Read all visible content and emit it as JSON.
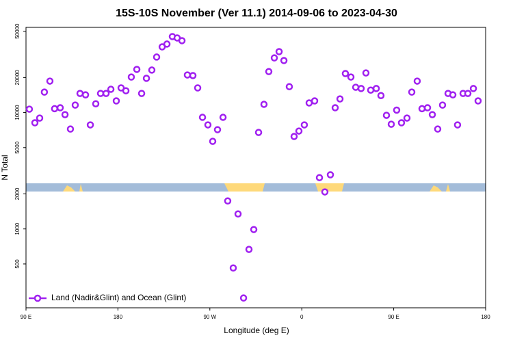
{
  "chart_data": {
    "type": "scatter",
    "title": "15S-10S November (Ver 11.1)   2014-09-06 to 2023-04-30",
    "x_label": "Longitude (deg E)",
    "y_label": "N Total",
    "log_y": true,
    "xlim": [
      90,
      540
    ],
    "ylim": [
      210,
      54000
    ],
    "xticks": [
      {
        "value": 90,
        "label": "90 E"
      },
      {
        "value": 180,
        "label": "180"
      },
      {
        "value": 270,
        "label": "90 W"
      },
      {
        "value": 360,
        "label": "0"
      },
      {
        "value": 450,
        "label": "90 E"
      },
      {
        "value": 540,
        "label": "180"
      }
    ],
    "yticks": [
      500,
      1000,
      2000,
      5000,
      10000,
      20000,
      50000
    ],
    "legend_position": "lower left",
    "series": [
      {
        "name": "Land (Nadir&Glint) and Ocean (Glint)",
        "color": "#a020f0",
        "x": [
          93.3,
          98.7,
          103.4,
          108,
          113.4,
          118,
          123.5,
          128.2,
          133.5,
          138.2,
          142.9,
          148.3,
          153,
          158.3,
          163,
          168.4,
          173.1,
          178.4,
          183.1,
          187.8,
          193.1,
          198.5,
          203.2,
          207.9,
          213.2,
          217.9,
          223.3,
          228,
          233.3,
          238,
          242.7,
          248,
          253.4,
          258.1,
          262.8,
          268.1,
          272.8,
          277.5,
          282.9,
          287.5,
          292.9,
          297.6,
          303,
          308.3,
          313,
          317.7,
          323,
          327.7,
          333.1,
          337.8,
          342.5,
          347.8,
          352.5,
          357.2,
          362.5,
          367.2,
          372.6,
          377.3,
          382.6,
          388,
          392.7,
          397.4,
          402.7,
          408.1,
          412.8,
          418.1,
          422.8,
          427.5,
          432.9,
          437.5,
          442.9,
          447.6,
          452.9,
          457.6,
          463,
          467.7,
          473,
          477.7,
          483.1,
          487.8,
          493.1,
          497.8,
          503.2,
          507.9,
          512.5,
          517.9,
          522.6,
          528,
          532.6
        ],
        "values": [
          10700,
          8170,
          8970,
          15000,
          18640,
          10800,
          11000,
          9600,
          7220,
          11600,
          14600,
          14200,
          7840,
          11900,
          14600,
          14600,
          15850,
          12600,
          16300,
          15400,
          20200,
          23500,
          14600,
          19700,
          23200,
          30000,
          36700,
          38800,
          45000,
          43800,
          41500,
          21050,
          20800,
          16300,
          9100,
          7840,
          5660,
          7130,
          9100,
          1740,
          462,
          1345,
          255,
          667,
          988,
          6750,
          11770,
          22500,
          29500,
          33400,
          28000,
          16700,
          6230,
          6940,
          7840,
          12100,
          12600,
          2760,
          2080,
          2920,
          11000,
          13100,
          21650,
          20200,
          16500,
          16100,
          21900,
          15600,
          16100,
          14000,
          9470,
          7940,
          10500,
          8170,
          8970,
          15000,
          18640,
          10800,
          11000,
          9600,
          7220,
          11600,
          14600,
          14200,
          7840,
          14600,
          14600,
          16100,
          12600
        ]
      }
    ]
  }
}
